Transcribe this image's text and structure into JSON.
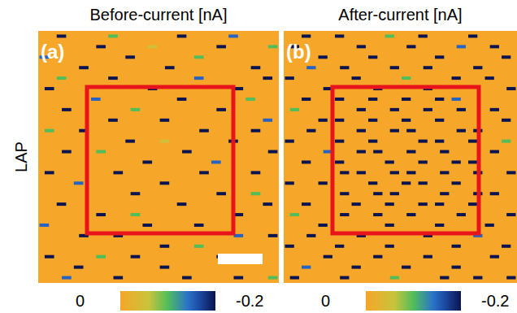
{
  "row_label": "LAP",
  "chart_data": [
    {
      "type": "heatmap",
      "title": "Before-current [nA]",
      "panel_label": "(a)",
      "colorbar": {
        "range": [
          0,
          -0.2
        ],
        "ticks": [
          0,
          -0.2
        ]
      },
      "cells": [
        [
          0,
          -0.2,
          0,
          0,
          -0.1,
          0,
          0,
          0,
          -0.2,
          0,
          0,
          -0.15,
          0,
          0
        ],
        [
          0,
          0,
          0,
          -0.2,
          0,
          0,
          -0.05,
          0,
          0,
          0,
          -0.2,
          0,
          0,
          -0.1
        ],
        [
          -0.15,
          0,
          0,
          0,
          0,
          -0.2,
          0,
          0,
          0,
          -0.1,
          0,
          0,
          0,
          0
        ],
        [
          0,
          0,
          -0.2,
          0,
          0,
          0,
          0,
          -0.2,
          0,
          0,
          0,
          0,
          -0.2,
          0
        ],
        [
          0,
          -0.1,
          0,
          0,
          -0.2,
          0,
          0,
          0,
          0,
          -0.15,
          0,
          0,
          0,
          -0.2
        ],
        [
          -0.2,
          0,
          0,
          0,
          0,
          0,
          -0.2,
          0,
          0,
          0,
          0,
          -0.2,
          0,
          0
        ],
        [
          0,
          0,
          0,
          -0.15,
          0,
          0,
          0,
          0,
          -0.2,
          0,
          0,
          0,
          -0.1,
          0
        ],
        [
          0,
          -0.2,
          0,
          0,
          0,
          -0.1,
          0,
          0,
          0,
          0,
          -0.2,
          0,
          0,
          0
        ],
        [
          0,
          0,
          0,
          0,
          -0.2,
          0,
          0,
          -0.2,
          0,
          0,
          0,
          0,
          0,
          -0.15
        ],
        [
          -0.1,
          0,
          -0.2,
          0,
          0,
          0,
          0,
          0,
          0,
          -0.2,
          0,
          0,
          -0.2,
          0
        ],
        [
          0,
          0,
          0,
          0,
          0,
          -0.2,
          0,
          -0.05,
          0,
          0,
          0,
          -0.2,
          0,
          0
        ],
        [
          0,
          -0.2,
          0,
          -0.1,
          0,
          0,
          0,
          0,
          -0.2,
          0,
          0,
          0,
          0,
          -0.2
        ],
        [
          0,
          0,
          0,
          0,
          0,
          0,
          -0.2,
          0,
          0,
          0,
          -0.15,
          0,
          0,
          0
        ],
        [
          -0.2,
          0,
          0,
          0,
          -0.2,
          0,
          0,
          0,
          0,
          -0.2,
          0,
          0,
          -0.2,
          0
        ],
        [
          0,
          0,
          -0.15,
          0,
          0,
          0,
          0,
          -0.2,
          0,
          0,
          0,
          0,
          0,
          0
        ],
        [
          0,
          0,
          0,
          0,
          0,
          -0.2,
          0,
          0,
          0,
          0,
          -0.2,
          0,
          -0.1,
          0
        ],
        [
          0,
          -0.2,
          0,
          0,
          0,
          0,
          0,
          0,
          -0.2,
          0,
          0,
          0,
          0,
          -0.2
        ],
        [
          0,
          0,
          0,
          -0.2,
          0,
          -0.1,
          0,
          0,
          0,
          0,
          0,
          -0.2,
          0,
          0
        ],
        [
          -0.15,
          0,
          0,
          0,
          0,
          0,
          -0.2,
          0,
          0,
          -0.2,
          0,
          0,
          0,
          0
        ],
        [
          0,
          0,
          -0.2,
          0,
          -0.2,
          0,
          0,
          0,
          0,
          0,
          0,
          -0.15,
          0,
          -0.2
        ],
        [
          0,
          0,
          0,
          0,
          0,
          0,
          0,
          -0.2,
          0,
          -0.1,
          0,
          0,
          0,
          0
        ],
        [
          -0.2,
          0,
          0,
          -0.1,
          0,
          -0.2,
          0,
          0,
          0,
          0,
          -0.2,
          0,
          -0.2,
          0
        ],
        [
          0,
          0,
          -0.2,
          0,
          0,
          0,
          0,
          -0.2,
          0,
          0,
          0,
          0,
          0,
          0
        ],
        [
          0,
          -0.15,
          0,
          0,
          -0.2,
          0,
          0,
          0,
          -0.2,
          0,
          0,
          -0.2,
          0,
          -0.1
        ]
      ]
    },
    {
      "type": "heatmap",
      "title": "After-current [nA]",
      "panel_label": "(b)",
      "colorbar": {
        "range": [
          0,
          -0.2
        ],
        "ticks": [
          0,
          -0.2
        ]
      },
      "cells": [
        [
          0,
          -0.2,
          0,
          -0.2,
          0,
          0,
          -0.1,
          0,
          -0.2,
          0,
          0,
          -0.2,
          0,
          0
        ],
        [
          -0.2,
          0,
          0,
          0,
          -0.2,
          0,
          0,
          -0.2,
          0,
          0,
          -0.15,
          0,
          -0.2,
          0
        ],
        [
          0,
          0,
          -0.2,
          0,
          0,
          -0.2,
          0,
          0,
          0,
          -0.2,
          0,
          0,
          0,
          -0.2
        ],
        [
          0,
          -0.15,
          0,
          -0.2,
          0,
          0,
          -0.2,
          0,
          -0.2,
          0,
          0,
          -0.2,
          0,
          0
        ],
        [
          -0.2,
          0,
          0,
          0,
          -0.2,
          0,
          0,
          -0.1,
          0,
          0,
          -0.2,
          0,
          -0.2,
          0
        ],
        [
          0,
          0,
          -0.2,
          0,
          0,
          -0.2,
          0,
          0,
          -0.2,
          0,
          0,
          0,
          0,
          -0.2
        ],
        [
          0,
          -0.2,
          0,
          -0.2,
          0,
          -0.2,
          0,
          -0.2,
          0,
          -0.2,
          -0.15,
          0,
          0,
          0
        ],
        [
          -0.1,
          0,
          0,
          0,
          -0.2,
          0,
          -0.2,
          0,
          -0.2,
          0,
          -0.2,
          0,
          -0.2,
          0
        ],
        [
          0,
          0,
          -0.2,
          -0.2,
          0,
          -0.2,
          0,
          -0.2,
          0,
          -0.2,
          0,
          0,
          0,
          -0.2
        ],
        [
          0,
          -0.2,
          0,
          0,
          -0.2,
          0,
          -0.2,
          -0.2,
          0,
          0,
          -0.2,
          -0.2,
          0,
          0
        ],
        [
          -0.2,
          0,
          0,
          -0.2,
          0,
          -0.2,
          0,
          0,
          -0.2,
          -0.2,
          0,
          -0.2,
          0,
          -0.1
        ],
        [
          0,
          0,
          -0.15,
          0,
          -0.2,
          -0.2,
          0,
          -0.2,
          0,
          -0.2,
          0,
          0,
          -0.2,
          0
        ],
        [
          0,
          -0.2,
          0,
          -0.2,
          0,
          0,
          -0.2,
          0,
          -0.2,
          0,
          -0.2,
          -0.2,
          0,
          0
        ],
        [
          0,
          0,
          0,
          -0.2,
          -0.2,
          0,
          -0.2,
          -0.2,
          0,
          -0.2,
          0,
          -0.2,
          0,
          -0.2
        ],
        [
          -0.2,
          0,
          -0.2,
          0,
          0,
          -0.2,
          0,
          -0.2,
          -0.2,
          0,
          -0.2,
          0,
          0,
          0
        ],
        [
          0,
          0,
          0,
          -0.2,
          0,
          -0.2,
          -0.2,
          0,
          0,
          -0.2,
          0,
          -0.2,
          -0.2,
          0
        ],
        [
          0,
          -0.2,
          0,
          0,
          -0.2,
          0,
          -0.2,
          0,
          -0.2,
          -0.2,
          0,
          -0.2,
          0,
          0
        ],
        [
          -0.1,
          0,
          0,
          -0.2,
          0,
          -0.2,
          0,
          -0.2,
          0,
          0,
          -0.2,
          0,
          0,
          -0.2
        ],
        [
          0,
          0,
          -0.2,
          0,
          0,
          0,
          -0.2,
          0,
          0,
          -0.2,
          0,
          0,
          -0.2,
          0
        ],
        [
          0,
          -0.2,
          0,
          0,
          -0.2,
          0,
          0,
          0,
          -0.2,
          0,
          0,
          -0.15,
          0,
          0
        ],
        [
          -0.2,
          0,
          0,
          -0.2,
          0,
          0,
          -0.2,
          0,
          0,
          0,
          -0.2,
          0,
          0,
          -0.2
        ],
        [
          0,
          0,
          -0.2,
          0,
          0,
          -0.2,
          0,
          0,
          -0.2,
          0,
          0,
          0,
          -0.2,
          0
        ],
        [
          0,
          -0.15,
          0,
          0,
          -0.2,
          0,
          0,
          -0.2,
          0,
          0,
          -0.2,
          0,
          0,
          0
        ],
        [
          -0.2,
          0,
          0,
          -0.2,
          0,
          0,
          -0.1,
          0,
          0,
          -0.2,
          0,
          -0.2,
          0,
          -0.2
        ]
      ]
    }
  ]
}
